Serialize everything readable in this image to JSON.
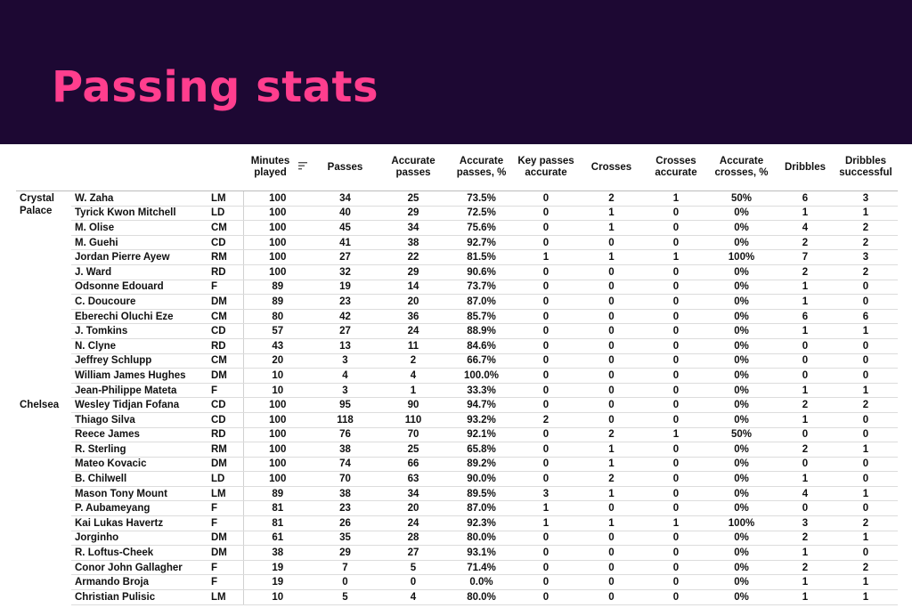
{
  "title": "Passing stats",
  "headers": {
    "minutes": "Minutes played",
    "passes": "Passes",
    "acc_passes": "Accurate passes",
    "acc_passes_pct": "Accurate passes, %",
    "key_passes": "Key passes accurate",
    "crosses": "Crosses",
    "crosses_acc": "Crosses accurate",
    "crosses_pct": "Accurate crosses, %",
    "dribbles": "Dribbles",
    "dribbles_succ": "Dribbles successful"
  },
  "sort_icon": "sort-descending-icon",
  "colors": {
    "banner": "#1d0833",
    "title": "#ff3e8e"
  },
  "teams": [
    {
      "name": "Crystal Palace",
      "rows": [
        [
          "W. Zaha",
          "LM",
          "100",
          "34",
          "25",
          "73.5%",
          "0",
          "2",
          "1",
          "50%",
          "6",
          "3"
        ],
        [
          "Tyrick Kwon Mitchell",
          "LD",
          "100",
          "40",
          "29",
          "72.5%",
          "0",
          "1",
          "0",
          "0%",
          "1",
          "1"
        ],
        [
          "M. Olise",
          "CM",
          "100",
          "45",
          "34",
          "75.6%",
          "0",
          "1",
          "0",
          "0%",
          "4",
          "2"
        ],
        [
          "M. Guehi",
          "CD",
          "100",
          "41",
          "38",
          "92.7%",
          "0",
          "0",
          "0",
          "0%",
          "2",
          "2"
        ],
        [
          "Jordan Pierre Ayew",
          "RM",
          "100",
          "27",
          "22",
          "81.5%",
          "1",
          "1",
          "1",
          "100%",
          "7",
          "3"
        ],
        [
          "J. Ward",
          "RD",
          "100",
          "32",
          "29",
          "90.6%",
          "0",
          "0",
          "0",
          "0%",
          "2",
          "2"
        ],
        [
          "Odsonne Edouard",
          "F",
          "89",
          "19",
          "14",
          "73.7%",
          "0",
          "0",
          "0",
          "0%",
          "1",
          "0"
        ],
        [
          "C. Doucoure",
          "DM",
          "89",
          "23",
          "20",
          "87.0%",
          "0",
          "0",
          "0",
          "0%",
          "1",
          "0"
        ],
        [
          "Eberechi Oluchi Eze",
          "CM",
          "80",
          "42",
          "36",
          "85.7%",
          "0",
          "0",
          "0",
          "0%",
          "6",
          "6"
        ],
        [
          "J. Tomkins",
          "CD",
          "57",
          "27",
          "24",
          "88.9%",
          "0",
          "0",
          "0",
          "0%",
          "1",
          "1"
        ],
        [
          "N. Clyne",
          "RD",
          "43",
          "13",
          "11",
          "84.6%",
          "0",
          "0",
          "0",
          "0%",
          "0",
          "0"
        ],
        [
          "Jeffrey Schlupp",
          "CM",
          "20",
          "3",
          "2",
          "66.7%",
          "0",
          "0",
          "0",
          "0%",
          "0",
          "0"
        ],
        [
          "William James Hughes",
          "DM",
          "10",
          "4",
          "4",
          "100.0%",
          "0",
          "0",
          "0",
          "0%",
          "0",
          "0"
        ],
        [
          "Jean-Philippe Mateta",
          "F",
          "10",
          "3",
          "1",
          "33.3%",
          "0",
          "0",
          "0",
          "0%",
          "1",
          "1"
        ]
      ]
    },
    {
      "name": "Chelsea",
      "rows": [
        [
          "Wesley Tidjan Fofana",
          "CD",
          "100",
          "95",
          "90",
          "94.7%",
          "0",
          "0",
          "0",
          "0%",
          "2",
          "2"
        ],
        [
          "Thiago Silva",
          "CD",
          "100",
          "118",
          "110",
          "93.2%",
          "2",
          "0",
          "0",
          "0%",
          "1",
          "0"
        ],
        [
          "Reece James",
          "RD",
          "100",
          "76",
          "70",
          "92.1%",
          "0",
          "2",
          "1",
          "50%",
          "0",
          "0"
        ],
        [
          "R. Sterling",
          "RM",
          "100",
          "38",
          "25",
          "65.8%",
          "0",
          "1",
          "0",
          "0%",
          "2",
          "1"
        ],
        [
          "Mateo Kovacic",
          "DM",
          "100",
          "74",
          "66",
          "89.2%",
          "0",
          "1",
          "0",
          "0%",
          "0",
          "0"
        ],
        [
          "B. Chilwell",
          "LD",
          "100",
          "70",
          "63",
          "90.0%",
          "0",
          "2",
          "0",
          "0%",
          "1",
          "0"
        ],
        [
          "Mason Tony Mount",
          "LM",
          "89",
          "38",
          "34",
          "89.5%",
          "3",
          "1",
          "0",
          "0%",
          "4",
          "1"
        ],
        [
          "P. Aubameyang",
          "F",
          "81",
          "23",
          "20",
          "87.0%",
          "1",
          "0",
          "0",
          "0%",
          "0",
          "0"
        ],
        [
          "Kai Lukas Havertz",
          "F",
          "81",
          "26",
          "24",
          "92.3%",
          "1",
          "1",
          "1",
          "100%",
          "3",
          "2"
        ],
        [
          "Jorginho",
          "DM",
          "61",
          "35",
          "28",
          "80.0%",
          "0",
          "0",
          "0",
          "0%",
          "2",
          "1"
        ],
        [
          "R. Loftus-Cheek",
          "DM",
          "38",
          "29",
          "27",
          "93.1%",
          "0",
          "0",
          "0",
          "0%",
          "1",
          "0"
        ],
        [
          "Conor John Gallagher",
          "F",
          "19",
          "7",
          "5",
          "71.4%",
          "0",
          "0",
          "0",
          "0%",
          "2",
          "2"
        ],
        [
          "Armando Broja",
          "F",
          "19",
          "0",
          "0",
          "0.0%",
          "0",
          "0",
          "0",
          "0%",
          "1",
          "1"
        ],
        [
          "Christian Pulisic",
          "LM",
          "10",
          "5",
          "4",
          "80.0%",
          "0",
          "0",
          "0",
          "0%",
          "1",
          "1"
        ]
      ]
    }
  ]
}
